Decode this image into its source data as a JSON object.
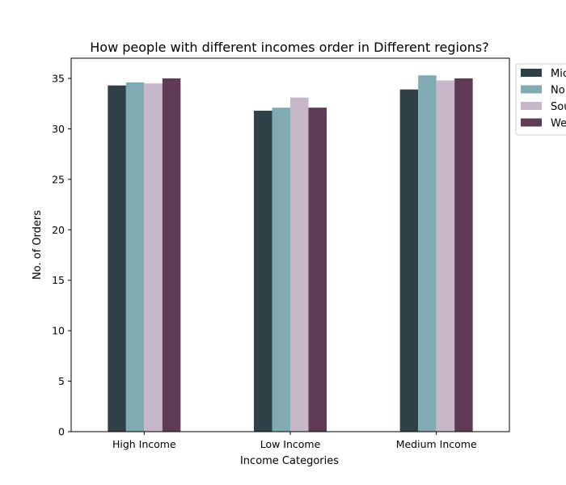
{
  "chart_data": {
    "type": "bar",
    "title": "How people with different incomes order in Different regions?",
    "xlabel": "Income Categories",
    "ylabel": "No. of Orders",
    "categories": [
      "High Income",
      "Low Income",
      "Medium Income"
    ],
    "ylim": [
      0,
      37
    ],
    "yticks": [
      0,
      5,
      10,
      15,
      20,
      25,
      30,
      35
    ],
    "grid": false,
    "legend_position": "outside-right-top",
    "legend_labels": [
      "Mic",
      "No",
      "Sou",
      "We"
    ],
    "series": [
      {
        "name": "Mic",
        "color": "#2f4047",
        "values": [
          34.3,
          31.8,
          33.9
        ]
      },
      {
        "name": "No",
        "color": "#81abb3",
        "values": [
          34.6,
          32.1,
          35.3
        ]
      },
      {
        "name": "Sou",
        "color": "#c8b7c9",
        "values": [
          34.5,
          33.1,
          34.8
        ]
      },
      {
        "name": "We",
        "color": "#5f3b56",
        "values": [
          35.0,
          32.1,
          35.0
        ]
      }
    ]
  }
}
